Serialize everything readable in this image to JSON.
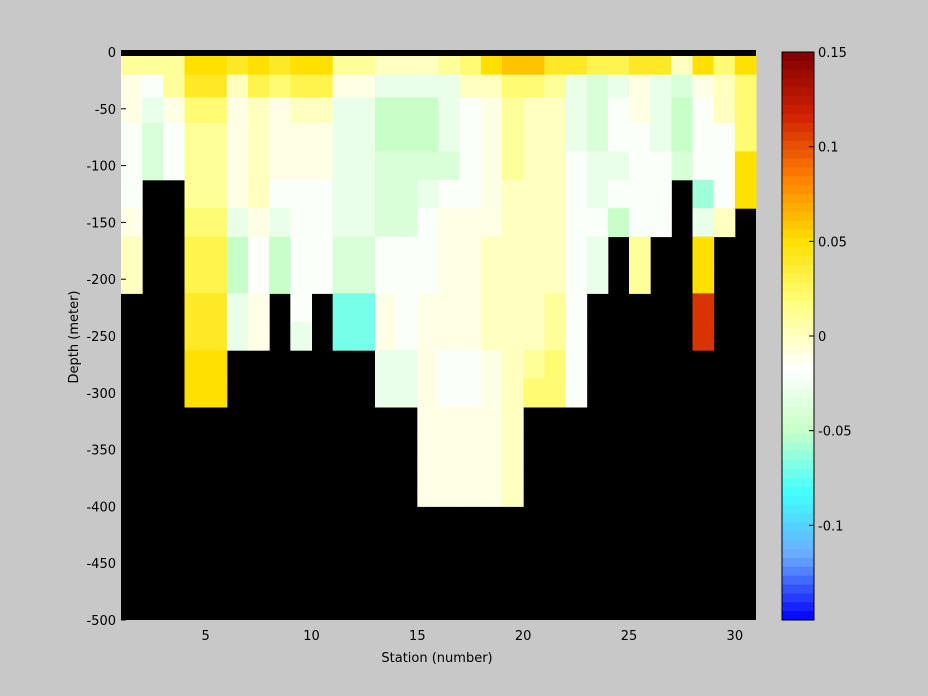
{
  "chart_data": {
    "type": "heatmap",
    "title": "",
    "xlabel": "Station (number)",
    "ylabel": "Depth (meter)",
    "xlim": [
      1,
      31
    ],
    "ylim": [
      -500,
      0
    ],
    "x_ticks": [
      5,
      10,
      15,
      20,
      25,
      30
    ],
    "y_ticks": [
      0,
      -50,
      -100,
      -150,
      -200,
      -250,
      -300,
      -350,
      -400,
      -450,
      -500
    ],
    "mask_color": "#000000",
    "colorbar": {
      "range": [
        -0.15,
        0.15
      ],
      "ticks": [
        0.15,
        0.1,
        0.05,
        0,
        -0.05,
        -0.1
      ],
      "tick_labels": [
        "0.15",
        "0.1",
        "0.05",
        "0",
        "-0.05",
        "-0.1"
      ],
      "colors": [
        "#0000ff",
        "#6aa8ff",
        "#40ffff",
        "#c8ffc8",
        "#ffffff",
        "#ffff80",
        "#ffe000",
        "#ff8000",
        "#d02000",
        "#800000"
      ]
    },
    "stations_x": [
      1.5,
      2.5,
      3.5,
      4.5,
      5.5,
      6.5,
      7.5,
      8.5,
      9.5,
      10.5,
      11.5,
      12.5,
      13.5,
      14.5,
      15.5,
      16.5,
      17.5,
      18.5,
      19.5,
      20.5,
      21.5,
      22.5,
      23.5,
      24.5,
      25.5,
      26.5,
      27.5,
      28.5,
      29.5,
      30.5
    ],
    "depth_bins": [
      -10,
      -30,
      -50,
      -75,
      -100,
      -125,
      -150,
      -175,
      -200,
      -225,
      -250,
      -275,
      -300,
      -325,
      -350,
      -375,
      -400
    ],
    "values": [
      [
        0.01,
        0.01,
        0.01,
        0.05,
        0.05,
        0.04,
        0.05,
        0.04,
        0.05,
        0.05,
        0.01,
        0.01,
        0.0,
        0.0,
        0.0,
        0.01,
        0.02,
        0.05,
        0.06,
        0.06,
        0.04,
        0.04,
        0.03,
        0.03,
        0.04,
        0.04,
        0.0,
        0.05,
        0.02,
        0.05
      ],
      [
        -0.01,
        -0.02,
        0.01,
        0.04,
        0.04,
        0.0,
        0.03,
        0.02,
        0.03,
        0.03,
        -0.01,
        -0.01,
        -0.03,
        -0.03,
        -0.03,
        -0.03,
        0.0,
        0.0,
        0.02,
        0.02,
        0.01,
        -0.03,
        -0.04,
        -0.03,
        -0.01,
        -0.03,
        -0.04,
        -0.01,
        0.0,
        0.02
      ],
      [
        -0.01,
        -0.03,
        -0.01,
        0.02,
        0.02,
        -0.01,
        0.0,
        -0.01,
        0.0,
        0.0,
        -0.03,
        -0.03,
        -0.05,
        -0.05,
        -0.05,
        -0.03,
        -0.02,
        -0.01,
        0.01,
        0.0,
        0.0,
        -0.03,
        -0.04,
        -0.02,
        -0.01,
        -0.03,
        -0.05,
        -0.02,
        0.0,
        0.02
      ],
      [
        -0.02,
        -0.04,
        -0.02,
        0.01,
        0.01,
        -0.01,
        0.0,
        -0.01,
        -0.01,
        -0.01,
        -0.03,
        -0.03,
        -0.05,
        -0.05,
        -0.05,
        -0.03,
        -0.02,
        -0.01,
        0.01,
        0.0,
        0.0,
        -0.03,
        -0.04,
        -0.02,
        -0.02,
        -0.03,
        -0.05,
        -0.02,
        -0.02,
        0.02
      ],
      [
        -0.02,
        -0.04,
        -0.02,
        0.01,
        0.01,
        -0.01,
        0.0,
        -0.01,
        -0.01,
        -0.01,
        -0.03,
        -0.03,
        -0.04,
        -0.04,
        -0.04,
        -0.04,
        -0.02,
        -0.01,
        0.01,
        0.0,
        0.0,
        -0.02,
        -0.03,
        -0.03,
        -0.02,
        -0.02,
        -0.04,
        -0.02,
        -0.02,
        0.05
      ],
      [
        -0.02,
        null,
        null,
        0.01,
        0.01,
        -0.01,
        0.0,
        -0.02,
        -0.02,
        -0.02,
        -0.03,
        -0.03,
        -0.04,
        -0.04,
        -0.03,
        -0.02,
        -0.02,
        -0.01,
        0.0,
        0.0,
        0.0,
        -0.02,
        -0.03,
        -0.02,
        -0.02,
        -0.02,
        null,
        -0.06,
        -0.02,
        0.05
      ],
      [
        -0.01,
        null,
        null,
        0.02,
        0.02,
        -0.03,
        -0.01,
        -0.03,
        -0.02,
        -0.02,
        -0.03,
        -0.03,
        -0.04,
        -0.04,
        -0.02,
        -0.01,
        -0.01,
        -0.01,
        0.0,
        0.0,
        0.0,
        -0.02,
        -0.02,
        -0.05,
        -0.02,
        -0.02,
        null,
        -0.03,
        0.0,
        null
      ],
      [
        0.0,
        null,
        null,
        0.03,
        0.03,
        -0.05,
        -0.02,
        -0.05,
        -0.02,
        -0.02,
        -0.04,
        -0.04,
        -0.02,
        -0.02,
        -0.02,
        -0.01,
        -0.01,
        0.0,
        0.0,
        0.0,
        0.0,
        -0.02,
        -0.03,
        null,
        0.01,
        null,
        null,
        0.05,
        null,
        null
      ],
      [
        0.0,
        null,
        null,
        0.03,
        0.03,
        -0.05,
        -0.02,
        -0.05,
        -0.02,
        -0.02,
        -0.04,
        -0.04,
        -0.02,
        -0.02,
        -0.02,
        -0.01,
        -0.01,
        0.0,
        0.0,
        0.0,
        0.0,
        -0.02,
        -0.03,
        null,
        0.01,
        null,
        null,
        0.05,
        null,
        null
      ],
      [
        null,
        null,
        null,
        0.04,
        0.04,
        -0.03,
        -0.01,
        null,
        -0.02,
        null,
        -0.07,
        -0.07,
        -0.01,
        -0.02,
        -0.01,
        -0.01,
        -0.01,
        0.0,
        0.0,
        0.0,
        0.01,
        -0.02,
        null,
        null,
        null,
        null,
        null,
        0.11,
        null,
        null
      ],
      [
        null,
        null,
        null,
        0.04,
        0.04,
        -0.03,
        -0.01,
        null,
        -0.03,
        null,
        -0.07,
        -0.07,
        -0.01,
        -0.02,
        -0.01,
        -0.01,
        -0.01,
        0.0,
        0.0,
        0.0,
        0.01,
        -0.02,
        null,
        null,
        null,
        null,
        null,
        0.11,
        null,
        null
      ],
      [
        null,
        null,
        null,
        0.05,
        0.05,
        null,
        null,
        null,
        null,
        null,
        null,
        null,
        -0.03,
        -0.03,
        -0.01,
        -0.02,
        -0.02,
        -0.01,
        0.0,
        0.01,
        0.02,
        -0.02,
        null,
        null,
        null,
        null,
        null,
        null,
        null,
        null
      ],
      [
        null,
        null,
        null,
        0.05,
        0.05,
        null,
        null,
        null,
        null,
        null,
        null,
        null,
        -0.03,
        -0.03,
        -0.01,
        -0.02,
        -0.02,
        -0.01,
        0.0,
        0.02,
        0.02,
        -0.02,
        null,
        null,
        null,
        null,
        null,
        null,
        null,
        null
      ],
      [
        null,
        null,
        null,
        null,
        null,
        null,
        null,
        null,
        null,
        null,
        null,
        null,
        null,
        null,
        -0.01,
        -0.01,
        -0.01,
        -0.01,
        0.0,
        null,
        null,
        null,
        null,
        null,
        null,
        null,
        null,
        null,
        null,
        null
      ],
      [
        null,
        null,
        null,
        null,
        null,
        null,
        null,
        null,
        null,
        null,
        null,
        null,
        null,
        null,
        -0.01,
        -0.01,
        -0.01,
        -0.01,
        0.0,
        null,
        null,
        null,
        null,
        null,
        null,
        null,
        null,
        null,
        null,
        null
      ],
      [
        null,
        null,
        null,
        null,
        null,
        null,
        null,
        null,
        null,
        null,
        null,
        null,
        null,
        null,
        -0.01,
        -0.01,
        -0.01,
        -0.01,
        0.0,
        null,
        null,
        null,
        null,
        null,
        null,
        null,
        null,
        null,
        null,
        null
      ],
      [
        null,
        null,
        null,
        null,
        null,
        null,
        null,
        null,
        null,
        null,
        null,
        null,
        null,
        null,
        -0.01,
        -0.01,
        -0.01,
        -0.01,
        0.0,
        null,
        null,
        null,
        null,
        null,
        null,
        null,
        null,
        null,
        null,
        null
      ]
    ]
  }
}
